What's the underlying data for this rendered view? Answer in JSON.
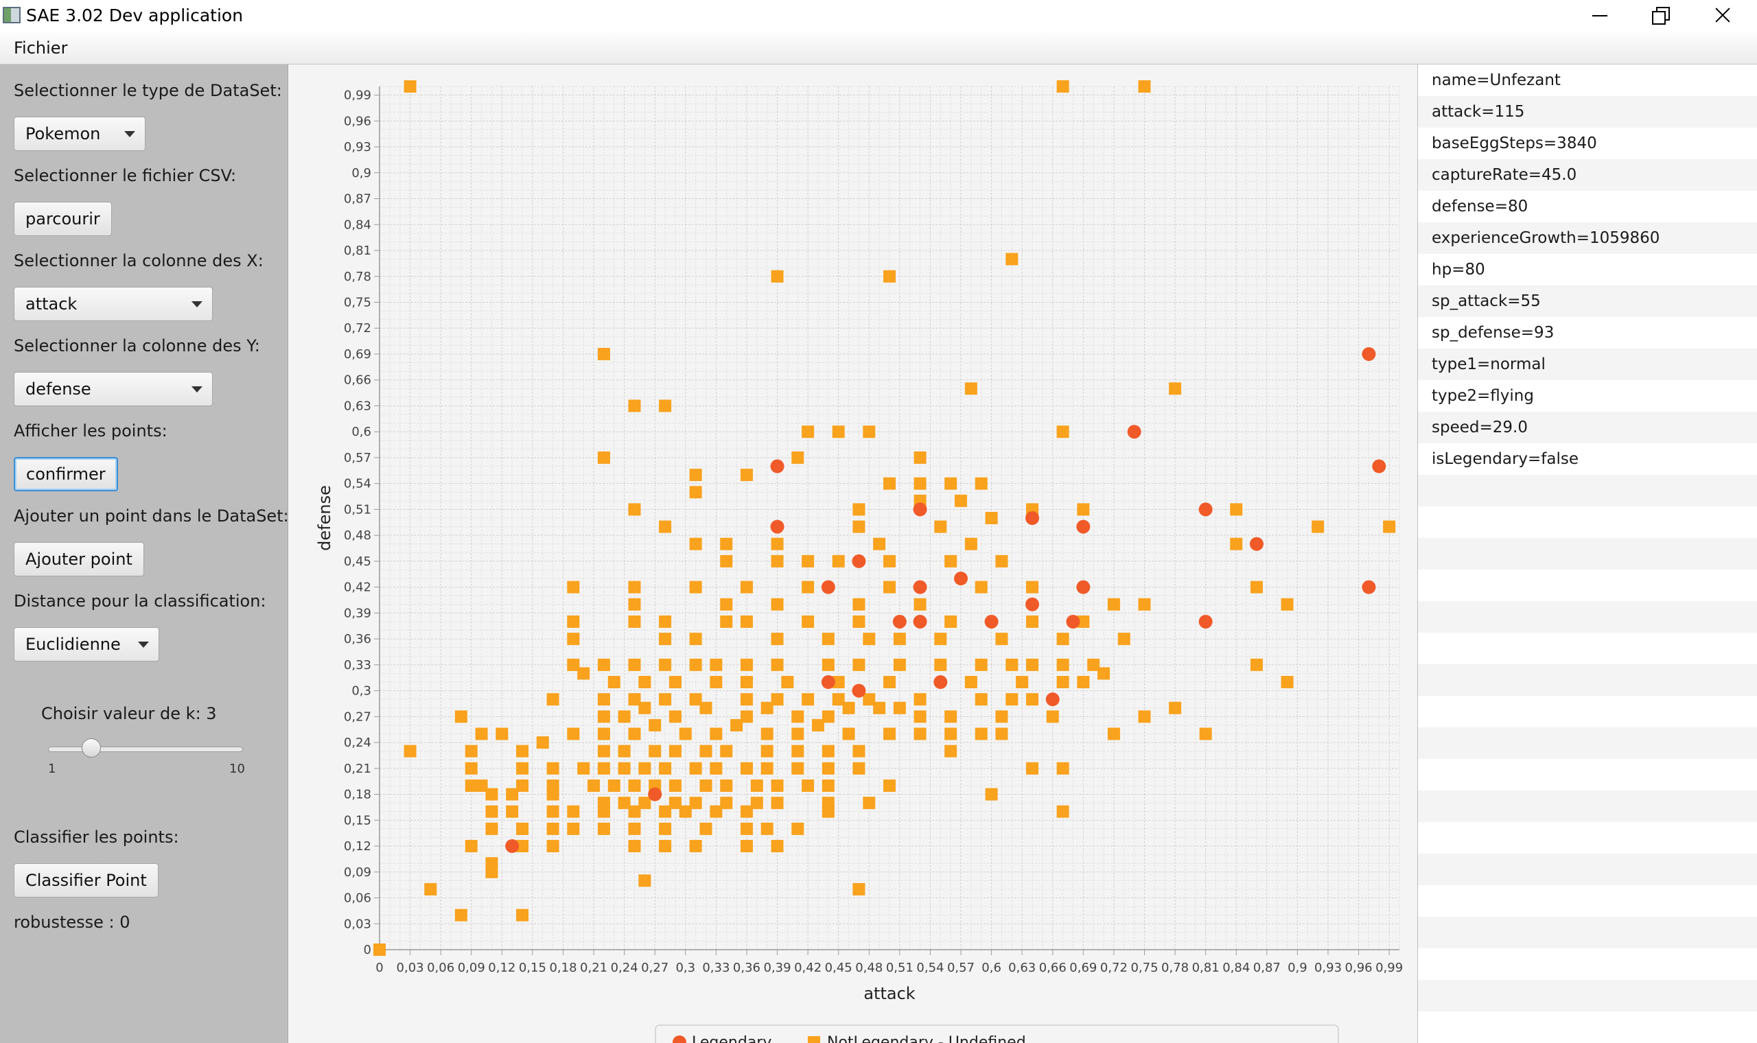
{
  "window": {
    "title": "SAE 3.02 Dev application"
  },
  "menu": {
    "fichier": "Fichier"
  },
  "left": {
    "dataset_label": "Selectionner le type de DataSet:",
    "dataset_value": "Pokemon",
    "csv_label": "Selectionner le fichier CSV:",
    "browse_button": "parcourir",
    "x_label": "Selectionner la colonne des X:",
    "x_value": "attack",
    "y_label": "Selectionner la colonne des Y:",
    "y_value": "defense",
    "show_label": "Afficher les points:",
    "confirm_button": "confirmer",
    "add_label": "Ajouter un point dans le DataSet:",
    "add_button": "Ajouter point",
    "distance_label": "Distance pour la classification:",
    "distance_value": "Euclidienne",
    "k_label": "Choisir valeur de k: 3",
    "k_min": "1",
    "k_max": "10",
    "k_value": 3,
    "classify_label": "Classifier les points:",
    "classify_button": "Classifier Point",
    "robustness": "robustesse : 0"
  },
  "details": [
    "name=Unfezant",
    "attack=115",
    "baseEggSteps=3840",
    "captureRate=45.0",
    "defense=80",
    "experienceGrowth=1059860",
    "hp=80",
    "sp_attack=55",
    "sp_defense=93",
    "type1=normal",
    "type2=flying",
    "speed=29.0",
    "isLegendary=false"
  ],
  "chart_data": {
    "type": "scatter",
    "xlabel": "attack",
    "ylabel": "defense",
    "xlim": [
      0,
      1
    ],
    "ylim": [
      0,
      1
    ],
    "tick_step": 0.03,
    "grid": true,
    "legend": "bottom",
    "series": [
      {
        "name": "Legendary",
        "marker": "circle",
        "color": "#f05a28",
        "points": [
          [
            0.39,
            0.56
          ],
          [
            0.39,
            0.49
          ],
          [
            0.47,
            0.45
          ],
          [
            0.44,
            0.42
          ],
          [
            0.53,
            0.51
          ],
          [
            0.53,
            0.42
          ],
          [
            0.57,
            0.43
          ],
          [
            0.51,
            0.38
          ],
          [
            0.53,
            0.38
          ],
          [
            0.6,
            0.38
          ],
          [
            0.64,
            0.4
          ],
          [
            0.64,
            0.5
          ],
          [
            0.68,
            0.38
          ],
          [
            0.69,
            0.42
          ],
          [
            0.69,
            0.49
          ],
          [
            0.74,
            0.6
          ],
          [
            0.81,
            0.51
          ],
          [
            0.81,
            0.38
          ],
          [
            0.86,
            0.47
          ],
          [
            0.97,
            0.69
          ],
          [
            0.98,
            0.56
          ],
          [
            0.97,
            0.42
          ],
          [
            0.44,
            0.31
          ],
          [
            0.47,
            0.3
          ],
          [
            0.55,
            0.31
          ],
          [
            0.66,
            0.29
          ],
          [
            0.13,
            0.12
          ],
          [
            0.27,
            0.18
          ]
        ]
      },
      {
        "name": "NotLegendary - Undefined",
        "marker": "square",
        "color": "#f9a21d",
        "points": [
          [
            0.03,
            1.0
          ],
          [
            0.67,
            1.0
          ],
          [
            0.75,
            1.0
          ],
          [
            0.62,
            0.8
          ],
          [
            0.39,
            0.78
          ],
          [
            0.5,
            0.78
          ],
          [
            0.22,
            0.69
          ],
          [
            0.58,
            0.65
          ],
          [
            0.78,
            0.65
          ],
          [
            0.25,
            0.63
          ],
          [
            0.28,
            0.63
          ],
          [
            0.42,
            0.6
          ],
          [
            0.45,
            0.6
          ],
          [
            0.48,
            0.6
          ],
          [
            0.67,
            0.6
          ],
          [
            0.22,
            0.57
          ],
          [
            0.41,
            0.57
          ],
          [
            0.53,
            0.57
          ],
          [
            0.31,
            0.55
          ],
          [
            0.36,
            0.55
          ],
          [
            0.31,
            0.53
          ],
          [
            0.5,
            0.54
          ],
          [
            0.53,
            0.54
          ],
          [
            0.56,
            0.54
          ],
          [
            0.59,
            0.54
          ],
          [
            0.25,
            0.51
          ],
          [
            0.47,
            0.51
          ],
          [
            0.53,
            0.52
          ],
          [
            0.57,
            0.52
          ],
          [
            0.64,
            0.51
          ],
          [
            0.69,
            0.51
          ],
          [
            0.84,
            0.51
          ],
          [
            0.28,
            0.49
          ],
          [
            0.47,
            0.49
          ],
          [
            0.55,
            0.49
          ],
          [
            0.92,
            0.49
          ],
          [
            0.99,
            0.49
          ],
          [
            0.31,
            0.47
          ],
          [
            0.34,
            0.47
          ],
          [
            0.39,
            0.47
          ],
          [
            0.49,
            0.47
          ],
          [
            0.58,
            0.47
          ],
          [
            0.6,
            0.5
          ],
          [
            0.84,
            0.47
          ],
          [
            0.34,
            0.45
          ],
          [
            0.39,
            0.45
          ],
          [
            0.42,
            0.45
          ],
          [
            0.45,
            0.45
          ],
          [
            0.5,
            0.45
          ],
          [
            0.56,
            0.45
          ],
          [
            0.61,
            0.45
          ],
          [
            0.19,
            0.42
          ],
          [
            0.25,
            0.42
          ],
          [
            0.31,
            0.42
          ],
          [
            0.36,
            0.42
          ],
          [
            0.42,
            0.42
          ],
          [
            0.5,
            0.42
          ],
          [
            0.59,
            0.42
          ],
          [
            0.64,
            0.42
          ],
          [
            0.86,
            0.42
          ],
          [
            0.25,
            0.4
          ],
          [
            0.34,
            0.4
          ],
          [
            0.39,
            0.4
          ],
          [
            0.47,
            0.4
          ],
          [
            0.53,
            0.4
          ],
          [
            0.72,
            0.4
          ],
          [
            0.75,
            0.4
          ],
          [
            0.89,
            0.4
          ],
          [
            0.19,
            0.38
          ],
          [
            0.25,
            0.38
          ],
          [
            0.28,
            0.38
          ],
          [
            0.34,
            0.38
          ],
          [
            0.36,
            0.38
          ],
          [
            0.42,
            0.38
          ],
          [
            0.47,
            0.38
          ],
          [
            0.56,
            0.38
          ],
          [
            0.64,
            0.38
          ],
          [
            0.69,
            0.38
          ],
          [
            0.19,
            0.36
          ],
          [
            0.28,
            0.36
          ],
          [
            0.31,
            0.36
          ],
          [
            0.39,
            0.36
          ],
          [
            0.44,
            0.36
          ],
          [
            0.48,
            0.36
          ],
          [
            0.51,
            0.36
          ],
          [
            0.55,
            0.36
          ],
          [
            0.61,
            0.36
          ],
          [
            0.67,
            0.36
          ],
          [
            0.73,
            0.36
          ],
          [
            0.19,
            0.33
          ],
          [
            0.22,
            0.33
          ],
          [
            0.25,
            0.33
          ],
          [
            0.28,
            0.33
          ],
          [
            0.31,
            0.33
          ],
          [
            0.33,
            0.33
          ],
          [
            0.36,
            0.33
          ],
          [
            0.39,
            0.33
          ],
          [
            0.44,
            0.33
          ],
          [
            0.47,
            0.33
          ],
          [
            0.51,
            0.33
          ],
          [
            0.55,
            0.33
          ],
          [
            0.59,
            0.33
          ],
          [
            0.62,
            0.33
          ],
          [
            0.64,
            0.33
          ],
          [
            0.67,
            0.33
          ],
          [
            0.7,
            0.33
          ],
          [
            0.86,
            0.33
          ],
          [
            0.2,
            0.32
          ],
          [
            0.23,
            0.31
          ],
          [
            0.26,
            0.31
          ],
          [
            0.29,
            0.31
          ],
          [
            0.33,
            0.31
          ],
          [
            0.36,
            0.31
          ],
          [
            0.4,
            0.31
          ],
          [
            0.45,
            0.31
          ],
          [
            0.5,
            0.31
          ],
          [
            0.58,
            0.31
          ],
          [
            0.63,
            0.31
          ],
          [
            0.67,
            0.31
          ],
          [
            0.69,
            0.31
          ],
          [
            0.71,
            0.32
          ],
          [
            0.89,
            0.31
          ],
          [
            0.17,
            0.29
          ],
          [
            0.22,
            0.29
          ],
          [
            0.25,
            0.29
          ],
          [
            0.28,
            0.29
          ],
          [
            0.31,
            0.29
          ],
          [
            0.36,
            0.29
          ],
          [
            0.39,
            0.29
          ],
          [
            0.42,
            0.29
          ],
          [
            0.45,
            0.29
          ],
          [
            0.48,
            0.29
          ],
          [
            0.53,
            0.29
          ],
          [
            0.59,
            0.29
          ],
          [
            0.62,
            0.29
          ],
          [
            0.64,
            0.29
          ],
          [
            0.08,
            0.27
          ],
          [
            0.22,
            0.27
          ],
          [
            0.24,
            0.27
          ],
          [
            0.26,
            0.28
          ],
          [
            0.29,
            0.27
          ],
          [
            0.32,
            0.28
          ],
          [
            0.36,
            0.27
          ],
          [
            0.38,
            0.28
          ],
          [
            0.41,
            0.27
          ],
          [
            0.44,
            0.27
          ],
          [
            0.46,
            0.28
          ],
          [
            0.49,
            0.28
          ],
          [
            0.51,
            0.28
          ],
          [
            0.53,
            0.27
          ],
          [
            0.56,
            0.27
          ],
          [
            0.61,
            0.27
          ],
          [
            0.66,
            0.27
          ],
          [
            0.75,
            0.27
          ],
          [
            0.78,
            0.28
          ],
          [
            0.1,
            0.25
          ],
          [
            0.12,
            0.25
          ],
          [
            0.19,
            0.25
          ],
          [
            0.22,
            0.25
          ],
          [
            0.25,
            0.25
          ],
          [
            0.27,
            0.26
          ],
          [
            0.3,
            0.25
          ],
          [
            0.33,
            0.25
          ],
          [
            0.35,
            0.26
          ],
          [
            0.38,
            0.25
          ],
          [
            0.41,
            0.25
          ],
          [
            0.43,
            0.26
          ],
          [
            0.46,
            0.25
          ],
          [
            0.5,
            0.25
          ],
          [
            0.53,
            0.25
          ],
          [
            0.56,
            0.25
          ],
          [
            0.59,
            0.25
          ],
          [
            0.61,
            0.25
          ],
          [
            0.72,
            0.25
          ],
          [
            0.81,
            0.25
          ],
          [
            0.03,
            0.23
          ],
          [
            0.09,
            0.23
          ],
          [
            0.14,
            0.23
          ],
          [
            0.16,
            0.24
          ],
          [
            0.22,
            0.23
          ],
          [
            0.24,
            0.23
          ],
          [
            0.27,
            0.23
          ],
          [
            0.29,
            0.23
          ],
          [
            0.32,
            0.23
          ],
          [
            0.34,
            0.23
          ],
          [
            0.38,
            0.23
          ],
          [
            0.41,
            0.23
          ],
          [
            0.44,
            0.23
          ],
          [
            0.47,
            0.23
          ],
          [
            0.56,
            0.23
          ],
          [
            0.09,
            0.21
          ],
          [
            0.14,
            0.21
          ],
          [
            0.17,
            0.21
          ],
          [
            0.2,
            0.21
          ],
          [
            0.22,
            0.21
          ],
          [
            0.24,
            0.21
          ],
          [
            0.26,
            0.21
          ],
          [
            0.28,
            0.21
          ],
          [
            0.31,
            0.21
          ],
          [
            0.33,
            0.21
          ],
          [
            0.36,
            0.21
          ],
          [
            0.38,
            0.21
          ],
          [
            0.41,
            0.21
          ],
          [
            0.44,
            0.21
          ],
          [
            0.47,
            0.21
          ],
          [
            0.64,
            0.21
          ],
          [
            0.67,
            0.21
          ],
          [
            0.09,
            0.19
          ],
          [
            0.1,
            0.19
          ],
          [
            0.14,
            0.19
          ],
          [
            0.17,
            0.19
          ],
          [
            0.21,
            0.19
          ],
          [
            0.23,
            0.19
          ],
          [
            0.25,
            0.19
          ],
          [
            0.27,
            0.19
          ],
          [
            0.29,
            0.19
          ],
          [
            0.32,
            0.19
          ],
          [
            0.34,
            0.19
          ],
          [
            0.37,
            0.19
          ],
          [
            0.39,
            0.19
          ],
          [
            0.42,
            0.19
          ],
          [
            0.44,
            0.19
          ],
          [
            0.5,
            0.19
          ],
          [
            0.11,
            0.18
          ],
          [
            0.13,
            0.18
          ],
          [
            0.17,
            0.18
          ],
          [
            0.22,
            0.17
          ],
          [
            0.24,
            0.17
          ],
          [
            0.26,
            0.17
          ],
          [
            0.29,
            0.17
          ],
          [
            0.31,
            0.17
          ],
          [
            0.34,
            0.17
          ],
          [
            0.37,
            0.17
          ],
          [
            0.39,
            0.17
          ],
          [
            0.44,
            0.17
          ],
          [
            0.48,
            0.17
          ],
          [
            0.6,
            0.18
          ],
          [
            0.11,
            0.16
          ],
          [
            0.13,
            0.16
          ],
          [
            0.17,
            0.16
          ],
          [
            0.19,
            0.16
          ],
          [
            0.22,
            0.16
          ],
          [
            0.25,
            0.16
          ],
          [
            0.28,
            0.16
          ],
          [
            0.3,
            0.16
          ],
          [
            0.33,
            0.16
          ],
          [
            0.36,
            0.16
          ],
          [
            0.44,
            0.16
          ],
          [
            0.67,
            0.16
          ],
          [
            0.11,
            0.14
          ],
          [
            0.14,
            0.14
          ],
          [
            0.17,
            0.14
          ],
          [
            0.19,
            0.14
          ],
          [
            0.22,
            0.14
          ],
          [
            0.25,
            0.14
          ],
          [
            0.28,
            0.14
          ],
          [
            0.32,
            0.14
          ],
          [
            0.36,
            0.14
          ],
          [
            0.38,
            0.14
          ],
          [
            0.41,
            0.14
          ],
          [
            0.09,
            0.12
          ],
          [
            0.11,
            0.1
          ],
          [
            0.11,
            0.09
          ],
          [
            0.14,
            0.12
          ],
          [
            0.17,
            0.12
          ],
          [
            0.25,
            0.12
          ],
          [
            0.28,
            0.12
          ],
          [
            0.31,
            0.12
          ],
          [
            0.36,
            0.12
          ],
          [
            0.39,
            0.12
          ],
          [
            0.05,
            0.07
          ],
          [
            0.26,
            0.08
          ],
          [
            0.47,
            0.07
          ],
          [
            0.08,
            0.04
          ],
          [
            0.14,
            0.04
          ],
          [
            0.0,
            0.0
          ]
        ]
      }
    ]
  }
}
